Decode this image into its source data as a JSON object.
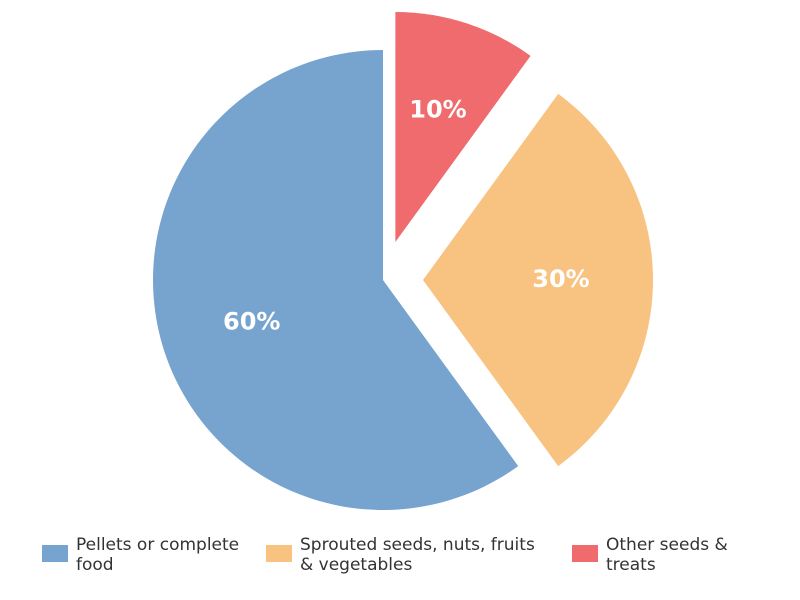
{
  "chart_data": {
    "type": "pie",
    "categories": [
      "Pellets or complete food",
      "Sprouted seeds, nuts, fruits & vegetables",
      "Other seeds & treats"
    ],
    "values": [
      60,
      30,
      10
    ],
    "value_labels": [
      "60%",
      "30%",
      "10%"
    ],
    "colors": [
      "#77a4cf",
      "#f8c281",
      "#ef6b6e"
    ],
    "legend": "bottom"
  }
}
